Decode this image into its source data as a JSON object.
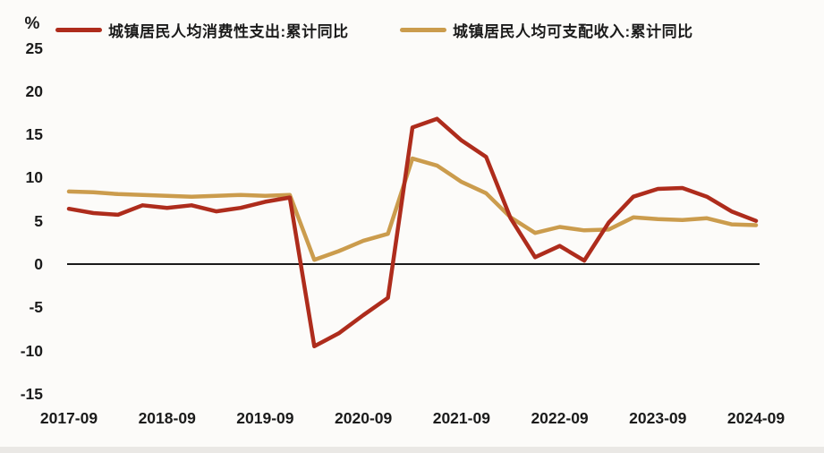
{
  "page": {
    "background": "#fcfbf9"
  },
  "legend": {
    "items": [
      {
        "label": "城镇居民人均消费性支出:累计同比",
        "color": "#ae2c1c"
      },
      {
        "label": "城镇居民人均可支配收入:累计同比",
        "color": "#cb9c4d"
      }
    ]
  },
  "chart_data": {
    "type": "line",
    "title": "",
    "unit_label": "%",
    "xlabel": "",
    "ylabel": "%",
    "ylim": [
      -15,
      25
    ],
    "grid": "off",
    "legend_position": "top",
    "y_ticks": [
      "25",
      "20",
      "15",
      "10",
      "5",
      "0",
      "-5",
      "-10",
      "-15"
    ],
    "x_tick_labels": [
      "2017-09",
      "2018-09",
      "2019-09",
      "2020-09",
      "2021-09",
      "2022-09",
      "2023-09",
      "2024-09"
    ],
    "x": [
      "2017-09",
      "2017-12",
      "2018-03",
      "2018-06",
      "2018-09",
      "2018-12",
      "2019-03",
      "2019-06",
      "2019-09",
      "2019-12",
      "2020-03",
      "2020-06",
      "2020-09",
      "2020-12",
      "2021-03",
      "2021-06",
      "2021-09",
      "2021-12",
      "2022-03",
      "2022-06",
      "2022-09",
      "2022-12",
      "2023-03",
      "2023-06",
      "2023-09",
      "2023-12",
      "2024-03",
      "2024-06",
      "2024-09"
    ],
    "series": [
      {
        "name": "城镇居民人均消费性支出:累计同比",
        "color": "#ae2c1c",
        "values": [
          6.4,
          5.9,
          5.7,
          6.8,
          6.5,
          6.8,
          6.1,
          6.5,
          7.2,
          7.7,
          -9.5,
          -8.0,
          -5.9,
          -3.9,
          15.8,
          16.8,
          14.3,
          12.4,
          5.3,
          0.8,
          2.1,
          0.4,
          4.8,
          7.8,
          8.7,
          8.8,
          7.8,
          6.1,
          5.0
        ]
      },
      {
        "name": "城镇居民人均可支配收入:累计同比",
        "color": "#cb9c4d",
        "values": [
          8.4,
          8.3,
          8.1,
          8.0,
          7.9,
          7.8,
          7.9,
          8.0,
          7.9,
          8.0,
          0.5,
          1.5,
          2.7,
          3.5,
          12.2,
          11.4,
          9.5,
          8.2,
          5.4,
          3.6,
          4.3,
          3.9,
          4.0,
          5.4,
          5.2,
          5.1,
          5.3,
          4.6,
          4.5
        ]
      }
    ],
    "zero_line_color": "#1a1a1a"
  }
}
